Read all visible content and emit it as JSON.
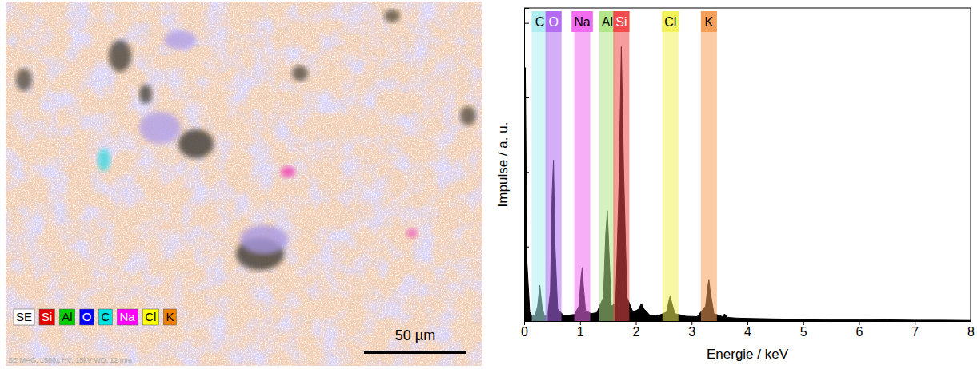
{
  "map_image": {
    "legend": [
      {
        "label": "SE",
        "color": "#ffffff"
      },
      {
        "label": "Si",
        "color": "#e00000"
      },
      {
        "label": "Al",
        "color": "#00d000"
      },
      {
        "label": "O",
        "color": "#0000ff"
      },
      {
        "label": "C",
        "color": "#00e0e0"
      },
      {
        "label": "Na",
        "color": "#ff00ff"
      },
      {
        "label": "Cl",
        "color": "#ffff00"
      },
      {
        "label": "K",
        "color": "#f08000"
      }
    ],
    "scale_bar": "50 µm",
    "info": "SE MAG: 1500x HV: 15kV WD: 12 mm"
  },
  "chart_data": {
    "type": "area",
    "x_label": "Energie / keV",
    "y_label": "Impulse / a. u.",
    "color": "#000000",
    "x": [
      0,
      0.02,
      0.05,
      0.1,
      0.15,
      0.2,
      0.24,
      0.28,
      0.32,
      0.36,
      0.42,
      0.47,
      0.5,
      0.525,
      0.55,
      0.6,
      0.7,
      0.8,
      0.9,
      0.98,
      1.02,
      1.04,
      1.06,
      1.1,
      1.2,
      1.3,
      1.42,
      1.46,
      1.49,
      1.52,
      1.56,
      1.64,
      1.7,
      1.74,
      1.78,
      1.84,
      1.95,
      2.05,
      2.1,
      2.15,
      2.25,
      2.4,
      2.55,
      2.6,
      2.62,
      2.64,
      2.7,
      2.9,
      3.1,
      3.25,
      3.29,
      3.31,
      3.33,
      3.4,
      3.55,
      3.59,
      3.65,
      3.8,
      4.0,
      4.5,
      5,
      5.5,
      6,
      6.5,
      7,
      7.5,
      8
    ],
    "values": [
      0,
      85,
      20,
      3,
      1.6,
      2,
      5,
      12,
      5,
      2,
      2,
      10,
      42,
      54,
      26,
      4,
      2,
      2,
      2.2,
      5,
      15,
      18,
      12,
      3.5,
      2.5,
      2.8,
      8,
      29,
      37,
      23,
      5,
      6,
      47,
      92,
      52,
      8,
      3,
      4,
      5.9,
      4,
      2,
      1.8,
      3,
      7.5,
      8.6,
      6.5,
      2.5,
      1.6,
      1.5,
      5,
      11.5,
      14,
      10.5,
      2.5,
      1.5,
      2.4,
      1.2,
      1,
      0.9,
      0.7,
      0.6,
      0.5,
      0.5,
      0.4,
      0.3,
      0.3,
      0.2
    ],
    "xlim": [
      0,
      8
    ],
    "xticks": [
      0,
      1,
      2,
      3,
      4,
      5,
      6,
      7,
      8
    ],
    "ylim": [
      0,
      105
    ],
    "yticks": [
      0,
      25,
      50,
      75,
      100
    ],
    "tick_labels": "x",
    "annotations": [
      {
        "text": "C",
        "x": 0.28,
        "color": "#aeeef0"
      },
      {
        "text": "O",
        "x": 0.525,
        "color": "#b36cf2"
      },
      {
        "text": "Na",
        "x": 1.04,
        "color": "#f26cf0"
      },
      {
        "text": "Al",
        "x": 1.49,
        "color": "#b3e68a"
      },
      {
        "text": "Si",
        "x": 1.74,
        "color": "#f04a4a"
      },
      {
        "text": "Cl",
        "x": 2.62,
        "color": "#f2f25a"
      },
      {
        "text": "K",
        "x": 3.31,
        "color": "#f5a05a"
      }
    ]
  }
}
